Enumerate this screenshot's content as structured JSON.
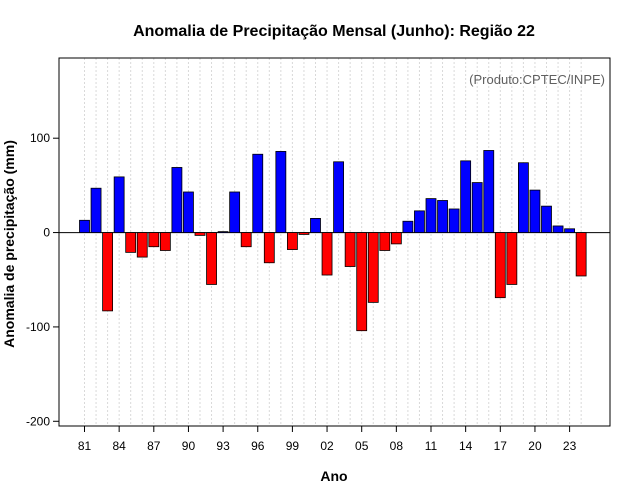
{
  "chart_data": {
    "type": "bar",
    "title": "Anomalia de Precipitação Mensal (Junho): Região 22",
    "xlabel": "Ano",
    "ylabel": "Anomalia de precipitação (mm)",
    "annotation": "(Produto:CPTEC/INPE)",
    "ylim": [
      -205,
      185
    ],
    "yticks": [
      -200,
      -100,
      0,
      100
    ],
    "xtick_labels": [
      "81",
      "84",
      "87",
      "90",
      "93",
      "96",
      "99",
      "02",
      "05",
      "08",
      "11",
      "14",
      "17",
      "20",
      "23"
    ],
    "categories": [
      "1981",
      "1982",
      "1983",
      "1984",
      "1985",
      "1986",
      "1987",
      "1988",
      "1989",
      "1990",
      "1991",
      "1992",
      "1993",
      "1994",
      "1995",
      "1996",
      "1997",
      "1998",
      "1999",
      "2000",
      "2001",
      "2002",
      "2003",
      "2004",
      "2005",
      "2006",
      "2007",
      "2008",
      "2009",
      "2010",
      "2011",
      "2012",
      "2013",
      "2014",
      "2015",
      "2016",
      "2017",
      "2018",
      "2019",
      "2020",
      "2021",
      "2022",
      "2023",
      "2024"
    ],
    "values": [
      13,
      47,
      -83,
      59,
      -21,
      -26,
      -15,
      -19,
      69,
      43,
      -3,
      -55,
      1,
      43,
      -15,
      83,
      -32,
      86,
      -18,
      -2,
      15,
      -45,
      75,
      -36,
      -104,
      -74,
      -19,
      -12,
      12,
      23,
      36,
      34,
      25,
      76,
      53,
      87,
      -69,
      -55,
      74,
      45,
      28,
      7,
      4,
      -46
    ],
    "colors": {
      "positive": "#0000ff",
      "negative": "#ff0000",
      "zero_line": "#000000"
    },
    "grid": "vertical dotted",
    "legend": "none"
  }
}
